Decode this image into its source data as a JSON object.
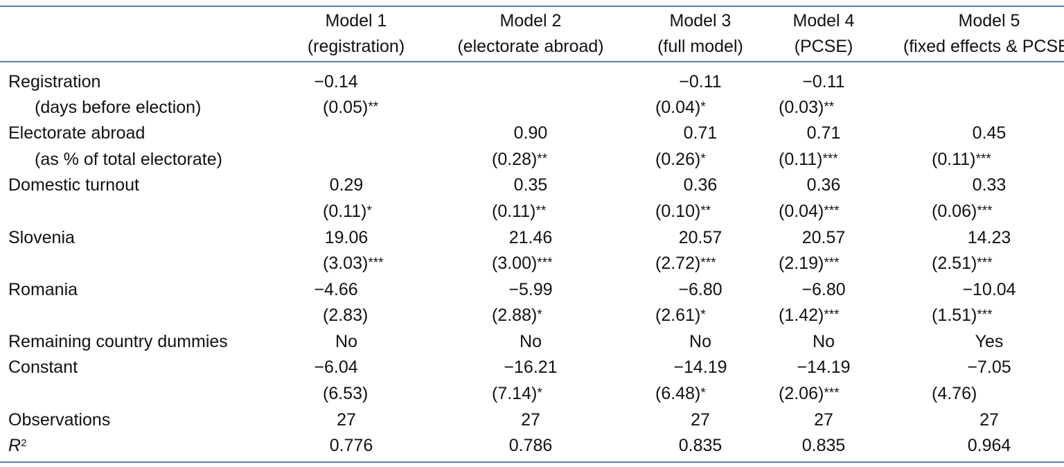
{
  "headers": [
    {
      "line1": "Model 1",
      "line2": "(registration)"
    },
    {
      "line1": "Model 2",
      "line2": "(electorate abroad)"
    },
    {
      "line1": "Model 3",
      "line2": "(full model)"
    },
    {
      "line1": "Model 4",
      "line2": "(PCSE)"
    },
    {
      "line1": "Model 5",
      "line2": "(fixed effects & PCSE)"
    }
  ],
  "rows": {
    "registration": {
      "label": "Registration",
      "sublabel": "(days before election)",
      "coef": [
        "−0.14",
        "",
        "−0.11",
        "−0.11",
        ""
      ],
      "se": [
        "(0.05)**",
        "",
        "(0.04)*",
        "(0.03)**",
        ""
      ]
    },
    "electorate_abroad": {
      "label": "Electorate abroad",
      "sublabel": "(as % of total electorate)",
      "coef": [
        "",
        "0.90",
        "0.71",
        "0.71",
        "0.45"
      ],
      "se": [
        "",
        "(0.28)**",
        "(0.26)*",
        "(0.11)***",
        "(0.11)***"
      ]
    },
    "domestic_turnout": {
      "label": "Domestic turnout",
      "coef": [
        "0.29",
        "0.35",
        "0.36",
        "0.36",
        "0.33"
      ],
      "se": [
        "(0.11)*",
        "(0.11)**",
        "(0.10)**",
        "(0.04)***",
        "(0.06)***"
      ]
    },
    "slovenia": {
      "label": "Slovenia",
      "coef": [
        "19.06",
        "21.46",
        "20.57",
        "20.57",
        "14.23"
      ],
      "se": [
        "(3.03)***",
        "(3.00)***",
        "(2.72)***",
        "(2.19)***",
        "(2.51)***"
      ]
    },
    "romania": {
      "label": "Romania",
      "coef": [
        "−4.66",
        "−5.99",
        "−6.80",
        "−6.80",
        "−10.04"
      ],
      "se": [
        "(2.83)",
        "(2.88)*",
        "(2.61)*",
        "(1.42)***",
        "(1.51)***"
      ]
    },
    "dummies": {
      "label": "Remaining country dummies",
      "coef": [
        "No",
        "No",
        "No",
        "No",
        "Yes"
      ]
    },
    "constant": {
      "label": "Constant",
      "coef": [
        "−6.04",
        "−16.21",
        "−14.19",
        "−14.19",
        "−7.05"
      ],
      "se": [
        "(6.53)",
        "(7.14)*",
        "(6.48)*",
        "(2.06)***",
        "(4.76)"
      ]
    },
    "observations": {
      "label": "Observations",
      "coef": [
        "27",
        "27",
        "27",
        "27",
        "27"
      ]
    },
    "r2": {
      "label_base": "R",
      "label_sup": "2",
      "coef": [
        "0.776",
        "0.786",
        "0.835",
        "0.835",
        "0.964"
      ]
    }
  },
  "colors": {
    "rule": "#5a7fb4",
    "text": "#111111"
  }
}
